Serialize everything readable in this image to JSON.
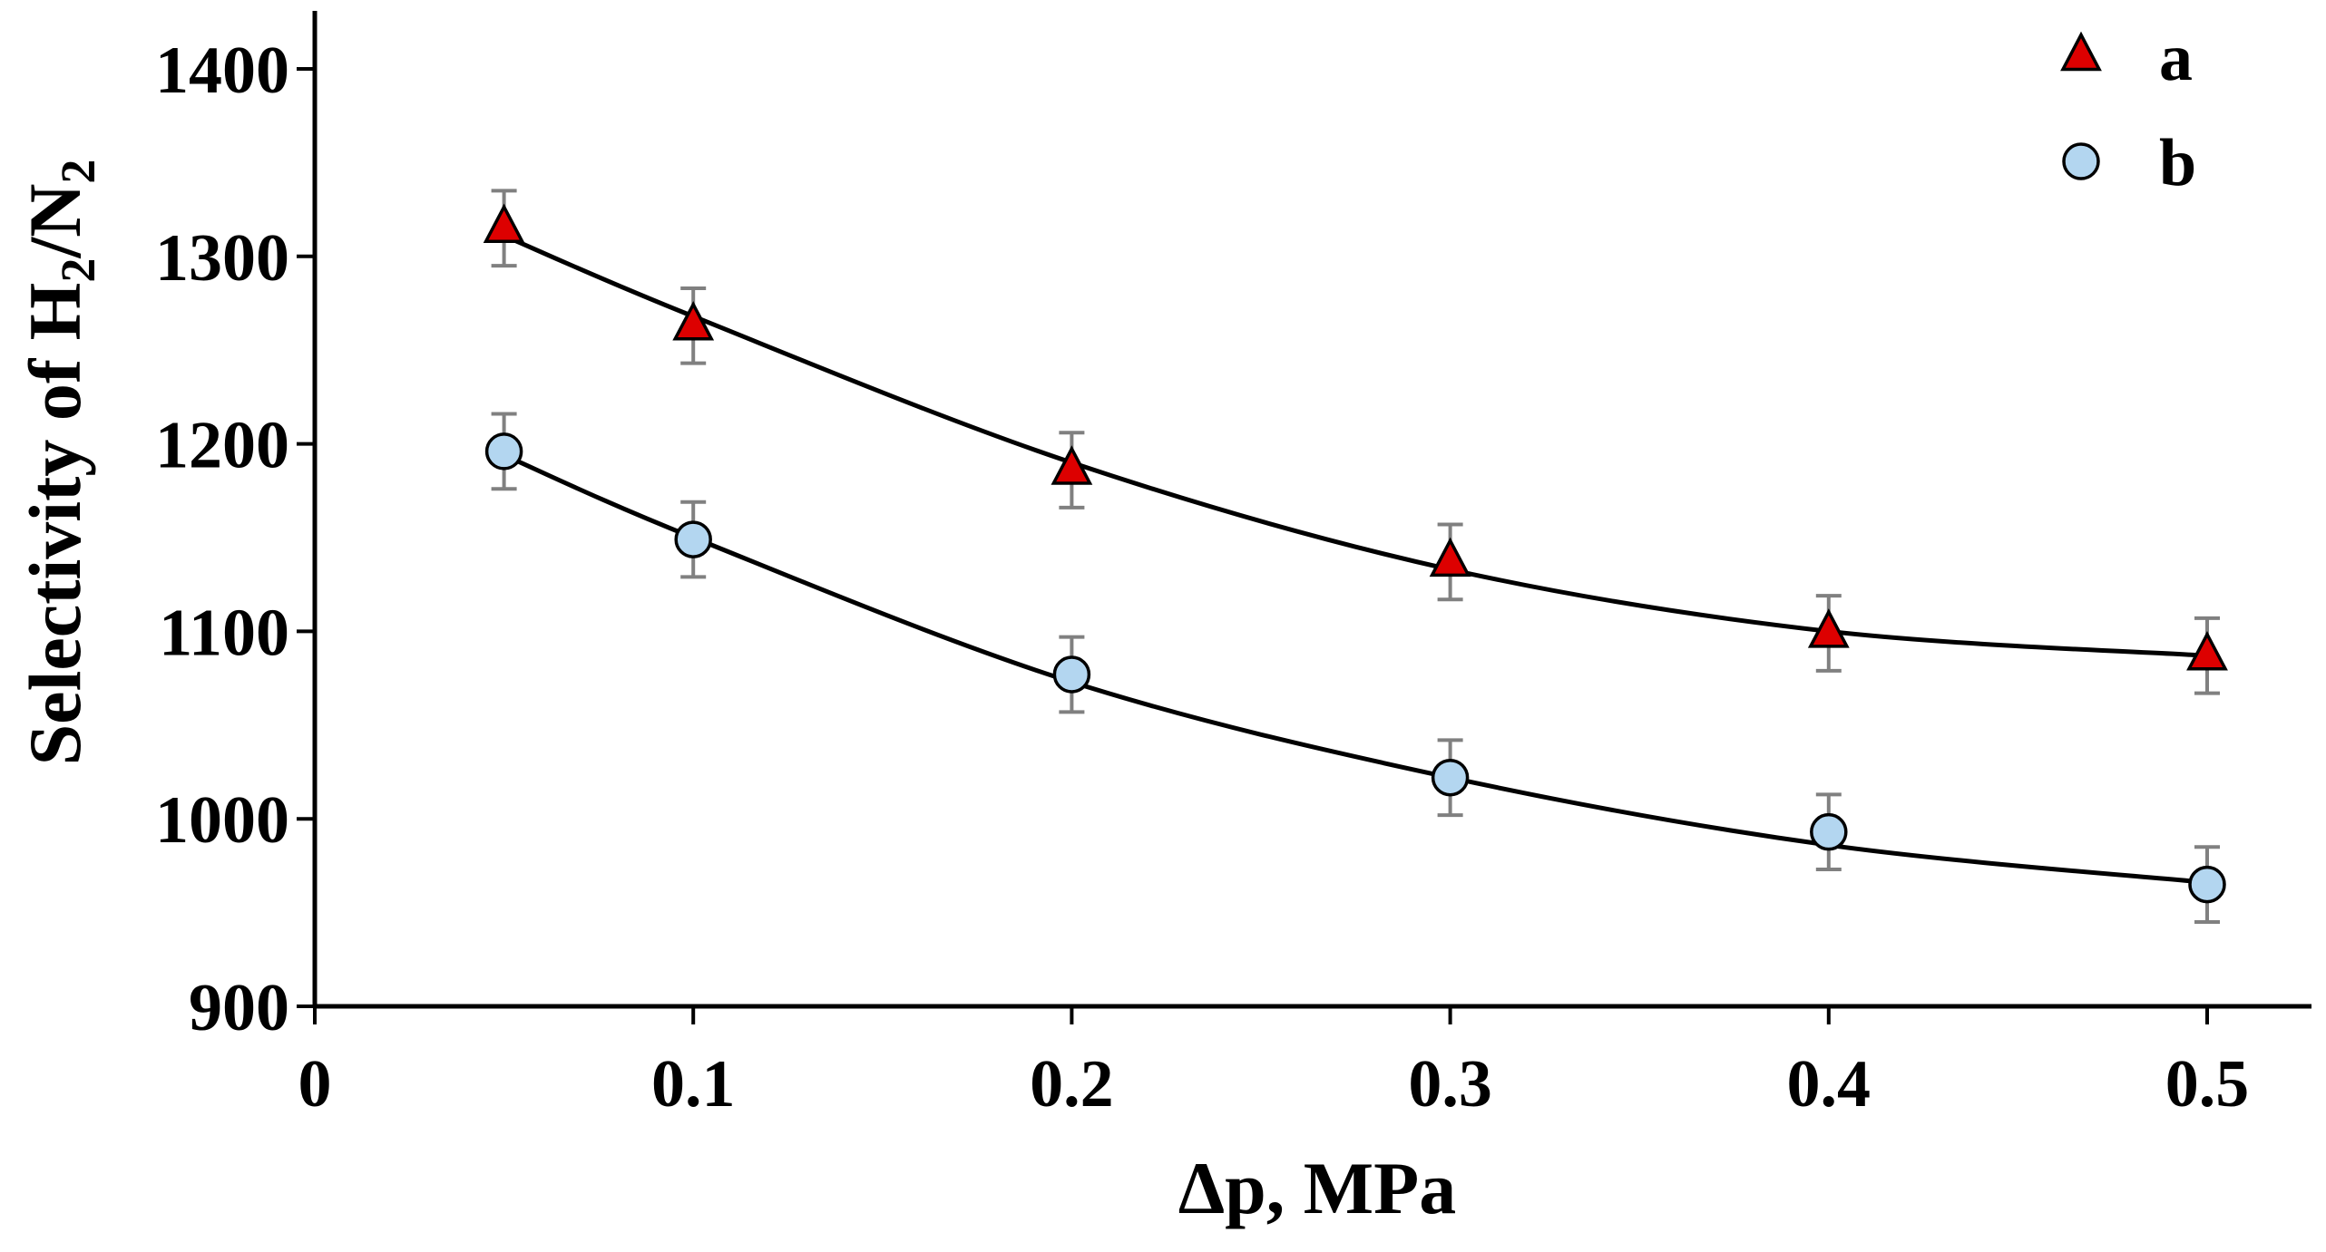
{
  "chart_data": {
    "type": "scatter",
    "title": "",
    "xlabel": "Δp, MPa",
    "ylabel": {
      "prefix": "Selectivity of  H",
      "sub1": "2",
      "middle": "/N",
      "sub2": "2"
    },
    "xlim": [
      0,
      0.53
    ],
    "ylim": [
      900,
      1430
    ],
    "x_ticks": [
      {
        "value": 0,
        "label": "0"
      },
      {
        "value": 0.1,
        "label": "0.1"
      },
      {
        "value": 0.2,
        "label": "0.2"
      },
      {
        "value": 0.3,
        "label": "0.3"
      },
      {
        "value": 0.4,
        "label": "0.4"
      },
      {
        "value": 0.5,
        "label": "0.5"
      }
    ],
    "y_ticks": [
      {
        "value": 900,
        "label": "900"
      },
      {
        "value": 1000,
        "label": "1000"
      },
      {
        "value": 1100,
        "label": "1100"
      },
      {
        "value": 1200,
        "label": "1200"
      },
      {
        "value": 1300,
        "label": "1300"
      },
      {
        "value": 1400,
        "label": "1400"
      }
    ],
    "grid": false,
    "legend_position": "top-right",
    "series": [
      {
        "name": "a",
        "marker": "triangle",
        "color": "#dd0000",
        "x": [
          0.05,
          0.1,
          0.2,
          0.3,
          0.4,
          0.5
        ],
        "y": [
          1315,
          1263,
          1186,
          1137,
          1099,
          1087
        ],
        "error": [
          20,
          20,
          20,
          20,
          20,
          20
        ],
        "fit": [
          1311,
          1268,
          1190,
          1133,
          1100,
          1087
        ]
      },
      {
        "name": "b",
        "marker": "circle",
        "color": "#b3d6f0",
        "x": [
          0.05,
          0.1,
          0.2,
          0.3,
          0.4,
          0.5
        ],
        "y": [
          1196,
          1149,
          1077,
          1022,
          993,
          965
        ],
        "error": [
          20,
          20,
          20,
          20,
          20,
          20
        ],
        "fit": [
          1194,
          1150,
          1073,
          1022,
          986,
          966
        ]
      }
    ],
    "error_bar_color": "#808080",
    "fit_line_color": "#000000"
  }
}
